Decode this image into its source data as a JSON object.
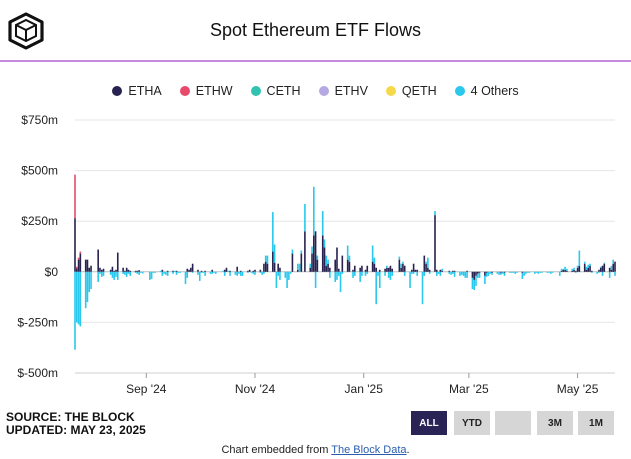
{
  "title": "Spot Ethereum ETF Flows",
  "legend": [
    {
      "name": "ETHA",
      "color": "#27224f"
    },
    {
      "name": "ETHW",
      "color": "#e84a6b"
    },
    {
      "name": "CETH",
      "color": "#32c2b0"
    },
    {
      "name": "ETHV",
      "color": "#b6a8e0"
    },
    {
      "name": "QETH",
      "color": "#f6d94a"
    },
    {
      "name": "4 Others",
      "color": "#29c8ec"
    }
  ],
  "source": "SOURCE: THE BLOCK",
  "updated": "UPDATED: MAY 23, 2025",
  "ranges": [
    "ALL",
    "YTD",
    "",
    "3M",
    "1M"
  ],
  "active_range": "ALL",
  "embed": {
    "prefix": "Chart embedded from ",
    "link": "The Block Data",
    "suffix": "."
  },
  "chart_data": {
    "type": "bar",
    "stacked": true,
    "ylim": [
      -500,
      750
    ],
    "ytick_labels": [
      "$750m",
      "$500m",
      "$250m",
      "$0",
      "$-250m",
      "$-500m"
    ],
    "yticks": [
      750,
      500,
      250,
      0,
      -250,
      -500
    ],
    "x_start": "2024-07-23",
    "x_end": "2025-05-22",
    "xtick_labels": [
      {
        "label": "Sep '24",
        "date": "2024-09-01"
      },
      {
        "label": "Nov '24",
        "date": "2024-11-01"
      },
      {
        "label": "Jan '25",
        "date": "2025-01-01"
      },
      {
        "label": "Mar '25",
        "date": "2025-03-01"
      },
      {
        "label": "May '25",
        "date": "2025-05-01"
      }
    ],
    "grid": "horizontal",
    "legend_position": "top",
    "series_names": [
      "ETHA",
      "ETHW",
      "CETH",
      "ETHV",
      "QETH",
      "4 Others"
    ],
    "flows": [
      {
        "date": "2024-07-23",
        "ETHA": 265,
        "ETHW": 215,
        "others": -385
      },
      {
        "date": "2024-07-24",
        "ETHA": 17,
        "ETHW": 8,
        "others": -250
      },
      {
        "date": "2024-07-25",
        "ETHA": 60,
        "ETHW": 10,
        "others": -260
      },
      {
        "date": "2024-07-26",
        "ETHA": 90,
        "ETHW": 10,
        "others": -270
      },
      {
        "date": "2024-07-29",
        "ETHA": 60,
        "others": -180
      },
      {
        "date": "2024-07-30",
        "ETHA": 60,
        "others": -150
      },
      {
        "date": "2024-07-31",
        "ETHA": 20,
        "others": -100
      },
      {
        "date": "2024-08-01",
        "ETHA": 30,
        "others": -85
      },
      {
        "date": "2024-08-05",
        "ETHA": 110,
        "others": -50
      },
      {
        "date": "2024-08-06",
        "ETHA": 20,
        "others": -10
      },
      {
        "date": "2024-08-07",
        "ETHA": 10,
        "others": -25
      },
      {
        "date": "2024-08-08",
        "ETHA": 15,
        "others": -20
      },
      {
        "date": "2024-08-12",
        "ETHA": 10,
        "others": -15
      },
      {
        "date": "2024-08-13",
        "ETHA": 25,
        "others": -30
      },
      {
        "date": "2024-08-14",
        "ETHA": 5,
        "others": -40
      },
      {
        "date": "2024-08-15",
        "ETHA": 10,
        "others": -25
      },
      {
        "date": "2024-08-16",
        "ETHA": 95,
        "others": -40
      },
      {
        "date": "2024-08-19",
        "ETHA": 20,
        "others": -10
      },
      {
        "date": "2024-08-20",
        "ETHA": 5,
        "others": -15
      },
      {
        "date": "2024-08-21",
        "ETHA": 20,
        "others": -25
      },
      {
        "date": "2024-08-22",
        "ETHA": 10,
        "others": -10
      },
      {
        "date": "2024-08-23",
        "ETHA": 5,
        "others": -20
      },
      {
        "date": "2024-08-26",
        "ETHA": 5,
        "others": -5
      },
      {
        "date": "2024-08-27",
        "ETHA": 5,
        "others": -10
      },
      {
        "date": "2024-08-28",
        "ETHA": 8,
        "others": -15
      },
      {
        "date": "2024-08-29",
        "others": -5
      },
      {
        "date": "2024-08-30",
        "others": -8
      },
      {
        "date": "2024-09-03",
        "others": -40
      },
      {
        "date": "2024-09-04",
        "others": -35
      },
      {
        "date": "2024-09-05",
        "others": -5
      },
      {
        "date": "2024-09-06",
        "others": -5
      },
      {
        "date": "2024-09-09",
        "others": 5
      },
      {
        "date": "2024-09-10",
        "ETHA": 10,
        "others": -20
      },
      {
        "date": "2024-09-11",
        "others": -10
      },
      {
        "date": "2024-09-12",
        "others": -15
      },
      {
        "date": "2024-09-13",
        "ETHA": 5,
        "others": -20
      },
      {
        "date": "2024-09-16",
        "ETHA": 5,
        "others": -10
      },
      {
        "date": "2024-09-17",
        "others": 5
      },
      {
        "date": "2024-09-18",
        "ETHA": 5,
        "others": -15
      },
      {
        "date": "2024-09-19",
        "others": -5
      },
      {
        "date": "2024-09-20",
        "others": -5
      },
      {
        "date": "2024-09-23",
        "others": -60
      },
      {
        "date": "2024-09-24",
        "ETHA": 15,
        "others": -30
      },
      {
        "date": "2024-09-25",
        "ETHA": 10
      },
      {
        "date": "2024-09-26",
        "ETHA": 20
      },
      {
        "date": "2024-09-27",
        "ETHA": 40,
        "others": -5
      },
      {
        "date": "2024-09-30",
        "ETHA": 10,
        "others": -15
      },
      {
        "date": "2024-10-01",
        "others": -45
      },
      {
        "date": "2024-10-02",
        "ETHA": 5,
        "others": -5
      },
      {
        "date": "2024-10-03",
        "others": -5
      },
      {
        "date": "2024-10-04",
        "ETHA": 5,
        "others": -20
      },
      {
        "date": "2024-10-07",
        "others": -10
      },
      {
        "date": "2024-10-08",
        "ETHA": 10,
        "others": -10
      },
      {
        "date": "2024-10-09",
        "others": -5
      },
      {
        "date": "2024-10-10",
        "others": -10
      },
      {
        "date": "2024-10-14",
        "others": 5
      },
      {
        "date": "2024-10-15",
        "ETHA": 10,
        "others": -20
      },
      {
        "date": "2024-10-16",
        "ETHA": 20
      },
      {
        "date": "2024-10-17",
        "others": 5
      },
      {
        "date": "2024-10-18",
        "ETHA": 5,
        "others": -20
      },
      {
        "date": "2024-10-21",
        "others": -15
      },
      {
        "date": "2024-10-22",
        "ETHA": 25,
        "others": -20
      },
      {
        "date": "2024-10-23",
        "others": -10
      },
      {
        "date": "2024-10-24",
        "ETHA": 5,
        "others": -20
      },
      {
        "date": "2024-10-25",
        "others": -20
      },
      {
        "date": "2024-10-28",
        "ETHA": 5,
        "others": -5
      },
      {
        "date": "2024-10-29",
        "ETHA": 10
      },
      {
        "date": "2024-10-30",
        "others": -5
      },
      {
        "date": "2024-10-31",
        "ETHA": 5,
        "others": -10
      },
      {
        "date": "2024-11-01",
        "ETHA": 10,
        "others": -15
      },
      {
        "date": "2024-11-04",
        "ETHA": 10,
        "others": -5
      },
      {
        "date": "2024-11-05",
        "others": -15
      },
      {
        "date": "2024-11-06",
        "ETHA": 40,
        "others": -10
      },
      {
        "date": "2024-11-07",
        "ETHA": 50,
        "others": 30
      },
      {
        "date": "2024-11-08",
        "ETHA": 40,
        "others": 40
      },
      {
        "date": "2024-11-11",
        "ETHA": 100,
        "others": 195
      },
      {
        "date": "2024-11-12",
        "ETHA": 45,
        "others": 90
      },
      {
        "date": "2024-11-13",
        "others": -80
      },
      {
        "date": "2024-11-14",
        "ETHA": 40,
        "others": -20
      },
      {
        "date": "2024-11-15",
        "ETHA": 20,
        "others": -40
      },
      {
        "date": "2024-11-18",
        "others": -30
      },
      {
        "date": "2024-11-19",
        "others": -80
      },
      {
        "date": "2024-11-20",
        "others": -40
      },
      {
        "date": "2024-11-21",
        "others": -10
      },
      {
        "date": "2024-11-22",
        "ETHA": 90,
        "others": 20
      },
      {
        "date": "2024-11-25",
        "ETHA": 10,
        "others": 30
      },
      {
        "date": "2024-11-26",
        "others": 40
      },
      {
        "date": "2024-11-27",
        "ETHA": 90,
        "others": 15
      },
      {
        "date": "2024-11-29",
        "ETHA": 200,
        "others": 135
      },
      {
        "date": "2024-12-02",
        "ETHA": 20,
        "others": 20
      },
      {
        "date": "2024-12-03",
        "ETHA": 90,
        "others": 35
      },
      {
        "date": "2024-12-04",
        "ETHA": 180,
        "others": 240
      },
      {
        "date": "2024-12-05",
        "ETHA": 200,
        "others": -80
      },
      {
        "date": "2024-12-06",
        "ETHA": 60,
        "others": 20
      },
      {
        "date": "2024-12-09",
        "ETHA": 180,
        "others": 120
      },
      {
        "date": "2024-12-10",
        "ETHA": 120,
        "others": 40
      },
      {
        "date": "2024-12-11",
        "ETHA": 30,
        "others": 50
      },
      {
        "date": "2024-12-12",
        "ETHA": 40,
        "others": 20
      },
      {
        "date": "2024-12-13",
        "ETHA": 20,
        "others": -30
      },
      {
        "date": "2024-12-16",
        "ETHA": 60,
        "others": -50
      },
      {
        "date": "2024-12-17",
        "ETHA": 120,
        "others": -40
      },
      {
        "date": "2024-12-18",
        "ETHA": 15,
        "others": -20
      },
      {
        "date": "2024-12-19",
        "others": -100
      },
      {
        "date": "2024-12-20",
        "ETHA": 80,
        "others": -10
      },
      {
        "date": "2024-12-23",
        "ETHA": 60,
        "others": 70
      },
      {
        "date": "2024-12-24",
        "ETHA": 50,
        "others": 30
      },
      {
        "date": "2024-12-26",
        "ETHA": 10,
        "others": -30
      },
      {
        "date": "2024-12-27",
        "ETHA": 30,
        "others": -20
      },
      {
        "date": "2024-12-30",
        "ETHA": 20,
        "others": -50
      },
      {
        "date": "2024-12-31",
        "ETHA": 30,
        "others": -20
      },
      {
        "date": "2025-01-02",
        "ETHA": 10,
        "others": -20
      },
      {
        "date": "2025-01-03",
        "ETHA": 30,
        "others": -10
      },
      {
        "date": "2025-01-06",
        "ETHA": 50,
        "others": 80
      },
      {
        "date": "2025-01-07",
        "ETHA": 40,
        "others": 30
      },
      {
        "date": "2025-01-08",
        "ETHA": 20,
        "others": -160
      },
      {
        "date": "2025-01-09",
        "others": -20
      },
      {
        "date": "2025-01-10",
        "ETHA": 10,
        "others": -80
      },
      {
        "date": "2025-01-13",
        "ETHA": 15,
        "others": -20
      },
      {
        "date": "2025-01-14",
        "ETHA": 20,
        "others": 10
      },
      {
        "date": "2025-01-15",
        "ETHA": 20,
        "others": -30
      },
      {
        "date": "2025-01-16",
        "ETHA": 30,
        "others": -40
      },
      {
        "date": "2025-01-17",
        "ETHA": 15,
        "others": -20
      },
      {
        "date": "2025-01-21",
        "ETHA": 60,
        "others": 15
      },
      {
        "date": "2025-01-22",
        "ETHA": 20,
        "others": 20
      },
      {
        "date": "2025-01-23",
        "ETHA": 40,
        "others": 10
      },
      {
        "date": "2025-01-24",
        "ETHA": 30,
        "others": -20
      },
      {
        "date": "2025-01-27",
        "others": -80
      },
      {
        "date": "2025-01-28",
        "ETHA": 10,
        "others": -10
      },
      {
        "date": "2025-01-29",
        "ETHA": 40,
        "others": -10
      },
      {
        "date": "2025-01-30",
        "ETHA": 10
      },
      {
        "date": "2025-01-31",
        "ETHA": 10,
        "others": -20
      },
      {
        "date": "2025-02-03",
        "others": -160
      },
      {
        "date": "2025-02-04",
        "ETHA": 80,
        "others": -20
      },
      {
        "date": "2025-02-05",
        "ETHA": 40,
        "others": 10
      },
      {
        "date": "2025-02-06",
        "ETHA": 20,
        "others": 50
      },
      {
        "date": "2025-02-07",
        "ETHA": 10,
        "others": -10
      },
      {
        "date": "2025-02-10",
        "ETHA": 280,
        "others": 20
      },
      {
        "date": "2025-02-11",
        "ETHA": 10,
        "others": -20
      },
      {
        "date": "2025-02-12",
        "others": -10
      },
      {
        "date": "2025-02-13",
        "ETHA": 10,
        "others": -20
      },
      {
        "date": "2025-02-14",
        "ETHA": 5,
        "others": 10
      },
      {
        "date": "2025-02-18",
        "ETHA": 5,
        "others": -10
      },
      {
        "date": "2025-02-19",
        "others": -15
      },
      {
        "date": "2025-02-20",
        "ETHA": 5,
        "others": -10
      },
      {
        "date": "2025-02-21",
        "ETHA": 5,
        "others": -25
      },
      {
        "date": "2025-02-24",
        "others": -20
      },
      {
        "date": "2025-02-25",
        "others": -15
      },
      {
        "date": "2025-02-26",
        "others": -20
      },
      {
        "date": "2025-02-27",
        "others": -30
      },
      {
        "date": "2025-02-28",
        "ETHA": 5,
        "others": -30
      },
      {
        "date": "2025-03-03",
        "ETHA": -30,
        "others": -55
      },
      {
        "date": "2025-03-04",
        "ETHA": -40,
        "others": -50
      },
      {
        "date": "2025-03-05",
        "ETHA": -20,
        "others": -50
      },
      {
        "date": "2025-03-06",
        "ETHA": -10,
        "others": -20
      },
      {
        "date": "2025-03-07",
        "ETHA": -5,
        "others": -25
      },
      {
        "date": "2025-03-10",
        "ETHA": -20,
        "others": -40
      },
      {
        "date": "2025-03-11",
        "ETHA": -5,
        "others": -20
      },
      {
        "date": "2025-03-12",
        "others": -20
      },
      {
        "date": "2025-03-13",
        "others": -10
      },
      {
        "date": "2025-03-14",
        "ETHA": -5,
        "others": -10
      },
      {
        "date": "2025-03-17",
        "others": -10
      },
      {
        "date": "2025-03-18",
        "others": -15
      },
      {
        "date": "2025-03-19",
        "ETHA": -5,
        "others": -10
      },
      {
        "date": "2025-03-20",
        "others": -10
      },
      {
        "date": "2025-03-21",
        "ETHA": -5,
        "others": -15
      },
      {
        "date": "2025-03-24",
        "others": -5
      },
      {
        "date": "2025-03-25",
        "others": -5
      },
      {
        "date": "2025-03-26",
        "others": -5
      },
      {
        "date": "2025-03-27",
        "others": -10
      },
      {
        "date": "2025-03-28",
        "others": -5
      },
      {
        "date": "2025-03-31",
        "ETHA": -5,
        "others": -30
      },
      {
        "date": "2025-04-01",
        "others": -20
      },
      {
        "date": "2025-04-02",
        "others": -10
      },
      {
        "date": "2025-04-03",
        "others": -5
      },
      {
        "date": "2025-04-04",
        "others": -5
      },
      {
        "date": "2025-04-07",
        "others": -10
      },
      {
        "date": "2025-04-08",
        "others": -5
      },
      {
        "date": "2025-04-09",
        "others": -10
      },
      {
        "date": "2025-04-10",
        "others": -5
      },
      {
        "date": "2025-04-11",
        "others": -5
      },
      {
        "date": "2025-04-14",
        "others": -5
      },
      {
        "date": "2025-04-15",
        "others": -5
      },
      {
        "date": "2025-04-16",
        "others": -10
      },
      {
        "date": "2025-04-17",
        "others": -5
      },
      {
        "date": "2025-04-21",
        "others": -20
      },
      {
        "date": "2025-04-22",
        "ETHA": 5,
        "others": 10
      },
      {
        "date": "2025-04-23",
        "ETHA": 10,
        "others": 5
      },
      {
        "date": "2025-04-24",
        "ETHA": 10,
        "others": 15
      },
      {
        "date": "2025-04-25",
        "ETHA": 5,
        "others": 10
      },
      {
        "date": "2025-04-28",
        "ETHA": 5,
        "others": 10
      },
      {
        "date": "2025-04-29",
        "ETHA": 10,
        "others": 10
      },
      {
        "date": "2025-04-30",
        "ETHA": 5,
        "others": -5
      },
      {
        "date": "2025-05-01",
        "ETHA": 20,
        "others": 10
      },
      {
        "date": "2025-05-02",
        "ETHA": 30,
        "others": 75
      },
      {
        "date": "2025-05-05",
        "ETHA": 40,
        "others": 10
      },
      {
        "date": "2025-05-06",
        "ETHA": 10,
        "others": 15
      },
      {
        "date": "2025-05-07",
        "ETHA": 20,
        "others": 15
      },
      {
        "date": "2025-05-08",
        "ETHA": 30,
        "others": 10
      },
      {
        "date": "2025-05-09",
        "ETHA": 5,
        "others": -5
      },
      {
        "date": "2025-05-12",
        "others": -10
      },
      {
        "date": "2025-05-13",
        "ETHA": 10,
        "others": -5
      },
      {
        "date": "2025-05-14",
        "ETHA": 20,
        "others": 5
      },
      {
        "date": "2025-05-15",
        "ETHA": 30,
        "others": -20
      },
      {
        "date": "2025-05-16",
        "ETHA": 40,
        "others": 5
      },
      {
        "date": "2025-05-19",
        "ETHA": 20,
        "others": -30
      },
      {
        "date": "2025-05-20",
        "ETHA": 10,
        "others": 20
      },
      {
        "date": "2025-05-21",
        "ETHA": 40,
        "others": 20
      },
      {
        "date": "2025-05-22",
        "ETHA": 50,
        "others": -20
      }
    ]
  }
}
